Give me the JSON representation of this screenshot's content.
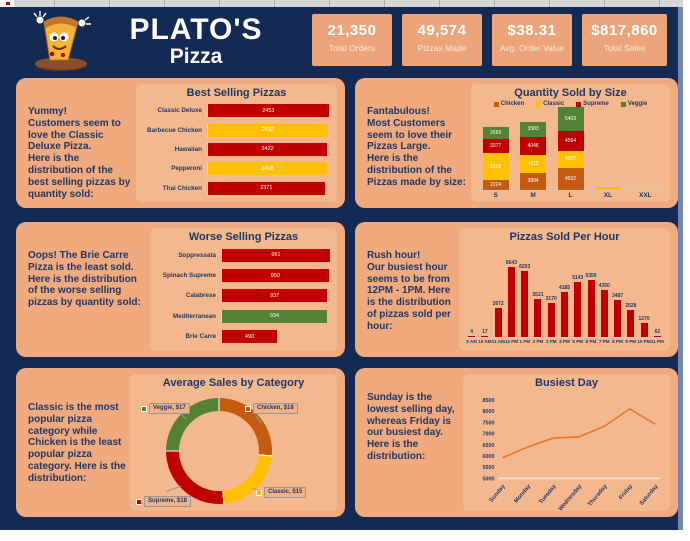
{
  "header": {
    "brand_line1": "PLATO'S",
    "brand_line2": "Pizza",
    "logo_icon": "pizza-mascot-icon",
    "kpis": [
      {
        "value": "21,350",
        "label": "Total Orders"
      },
      {
        "value": "49,574",
        "label": "Pizzas Made"
      },
      {
        "value": "$38.31",
        "label": "Avg. Order Value"
      },
      {
        "value": "$817,860",
        "label": "Total Sales"
      }
    ]
  },
  "panels": {
    "best_selling": {
      "title": "Best Selling Pizzas",
      "note": "Yummy!\nCustomers seem to love the Classic Deluxe Pizza.\nHere is the distribution of the best selling pizzas by quantity sold:"
    },
    "size": {
      "title": "Quantity Sold by Size",
      "note": "Fantabulous!\nMost Customers seem to love their Pizzas Large.\nHere is the distribution of the Pizzas made by size:"
    },
    "worse_selling": {
      "title": "Worse Selling Pizzas",
      "note": "Oops! The Brie Carre Pizza is the least sold.\nHere is the distribution of the worse selling pizzas by quantity sold:"
    },
    "per_hour": {
      "title": "Pizzas Sold Per Hour",
      "note": "Rush hour!\nOur busiest hour seems to be from 12PM - 1PM. Here is the distribution of pizzas sold per hour:"
    },
    "avg_category": {
      "title": "Average Sales by Category",
      "note": "Classic is the most popular pizza category while Chicken is the least popular pizza category. Here is the distribution:"
    },
    "busiest_day": {
      "title": "Busiest Day",
      "note": "Sunday is the lowest selling day, whereas Friday is our busiest day. Here is the distribution:"
    }
  },
  "colors": {
    "background_navy": "#152a52",
    "panel_peach": "#f1a97e",
    "kpi_card": "#eca57a",
    "red": "#c00000",
    "gold": "#ffc000",
    "green": "#548235",
    "brown": "#c55a11",
    "line_orange": "#e9762e",
    "text_navy": "#203864"
  },
  "chart_data": [
    {
      "id": "best_selling",
      "type": "bar",
      "orientation": "horizontal",
      "title": "Best Selling Pizzas",
      "categories": [
        "Classic Deluxe",
        "Barbecue Chicken",
        "Hawaiian",
        "Pepperoni",
        "Thai Chicken"
      ],
      "values": [
        2453,
        2432,
        2422,
        2418,
        2371
      ],
      "bar_colors": [
        "#c00000",
        "#ffc000",
        "#c00000",
        "#ffc000",
        "#c00000"
      ],
      "xlim": [
        0,
        2500
      ],
      "data_labels": true
    },
    {
      "id": "quantity_by_size",
      "type": "bar",
      "stacked": true,
      "title": "Quantity Sold by Size",
      "categories": [
        "S",
        "M",
        "L",
        "XL",
        "XXL"
      ],
      "series": [
        {
          "name": "Chicken",
          "color": "#c55a11",
          "values": [
            2224,
            3894,
            4932,
            0,
            0
          ]
        },
        {
          "name": "Classic",
          "color": "#ffc000",
          "values": [
            6139,
            4112,
            4057,
            552,
            28
          ]
        },
        {
          "name": "Supreme",
          "color": "#c00000",
          "values": [
            3377,
            4046,
            4564,
            0,
            0
          ]
        },
        {
          "name": "Veggie",
          "color": "#548235",
          "values": [
            2663,
            3583,
            5403,
            0,
            0
          ]
        }
      ],
      "legend_position": "top",
      "ylim": [
        0,
        19000
      ],
      "data_labels": true
    },
    {
      "id": "worse_selling",
      "type": "bar",
      "orientation": "horizontal",
      "title": "Worse Selling Pizzas",
      "categories": [
        "Soppressata",
        "Spinach Supreme",
        "Calabrese",
        "Mediterranean",
        "Brie Carre"
      ],
      "values": [
        961,
        950,
        937,
        934,
        490
      ],
      "bar_colors": [
        "#c00000",
        "#c00000",
        "#c00000",
        "#548235",
        "#c00000"
      ],
      "xlim": [
        0,
        970
      ],
      "data_labels": true
    },
    {
      "id": "pizzas_per_hour",
      "type": "bar",
      "title": "Pizzas Sold Per Hour",
      "categories": [
        "9 AM",
        "10 AM",
        "11 AM",
        "12 PM",
        "1 PM",
        "2 PM",
        "3 PM",
        "4 PM",
        "5 PM",
        "6 PM",
        "7 PM",
        "8 PM",
        "9 PM",
        "10 PM",
        "11 PM"
      ],
      "values": [
        4,
        17,
        2672,
        6543,
        6203,
        3521,
        3170,
        4185,
        5143,
        5359,
        4350,
        3487,
        2528,
        1270,
        62
      ],
      "bar_color": "#c00000",
      "data_labels": true
    },
    {
      "id": "avg_sales_by_category",
      "type": "pie",
      "donut": true,
      "title": "Average Sales by Category",
      "categories": [
        "Chicken",
        "Classic",
        "Supreme",
        "Veggie"
      ],
      "values": [
        18,
        15,
        18,
        17
      ],
      "labels": [
        "Chicken, $18",
        "Classic, $15",
        "Supreme, $18",
        "Veggie, $17"
      ],
      "colors": [
        "#c55a11",
        "#ffc000",
        "#c00000",
        "#548235"
      ],
      "start_angle_deg": 0
    },
    {
      "id": "busiest_day",
      "type": "line",
      "title": "Busiest Day",
      "categories": [
        "Sunday",
        "Monday",
        "Tuesday",
        "Wednesday",
        "Thursday",
        "Friday",
        "Saturday"
      ],
      "values": [
        5917,
        6400,
        6800,
        6850,
        7323,
        8106,
        7420
      ],
      "ylim": [
        5000,
        8500
      ],
      "ytick_step": 500,
      "yticks": [
        5000,
        5500,
        6000,
        6500,
        7000,
        7500,
        8000,
        8500
      ],
      "line_color": "#e9762e"
    }
  ]
}
